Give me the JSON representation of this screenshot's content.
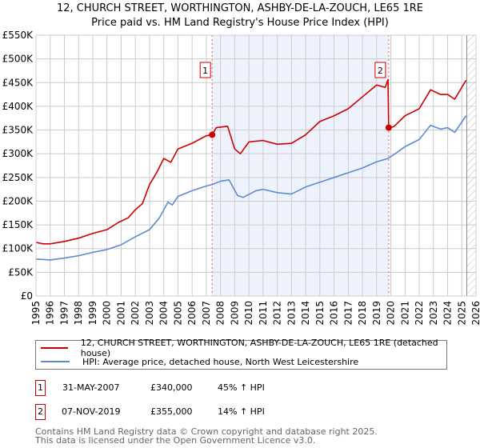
{
  "chart_data": {
    "type": "line",
    "title": "12, CHURCH STREET, WORTHINGTON, ASHBY-DE-LA-ZOUCH, LE65 1RE",
    "subtitle": "Price paid vs. HM Land Registry's House Price Index (HPI)",
    "xlabel": "",
    "ylabel": "",
    "xlim": [
      1995,
      2026
    ],
    "ylim": [
      0,
      550000
    ],
    "x_ticks": [
      "1995",
      "1996",
      "1997",
      "1998",
      "1999",
      "2000",
      "2001",
      "2002",
      "2003",
      "2004",
      "2005",
      "2006",
      "2007",
      "2008",
      "2009",
      "2010",
      "2011",
      "2012",
      "2013",
      "2014",
      "2015",
      "2016",
      "2017",
      "2018",
      "2019",
      "2020",
      "2021",
      "2022",
      "2023",
      "2024",
      "2025",
      "2026"
    ],
    "y_ticks": [
      {
        "value": 0,
        "label": "£0"
      },
      {
        "value": 50000,
        "label": "£50K"
      },
      {
        "value": 100000,
        "label": "£100K"
      },
      {
        "value": 150000,
        "label": "£150K"
      },
      {
        "value": 200000,
        "label": "£200K"
      },
      {
        "value": 250000,
        "label": "£250K"
      },
      {
        "value": 300000,
        "label": "£300K"
      },
      {
        "value": 350000,
        "label": "£350K"
      },
      {
        "value": 400000,
        "label": "£400K"
      },
      {
        "value": 450000,
        "label": "£450K"
      },
      {
        "value": 500000,
        "label": "£500K"
      },
      {
        "value": 550000,
        "label": "£550K"
      }
    ],
    "grid": true,
    "shaded_range": [
      2007.41,
      2019.85
    ],
    "forecast_from": 2025.35,
    "series": [
      {
        "name": "12, CHURCH STREET, WORTHINGTON, ASHBY-DE-LA-ZOUCH, LE65 1RE (detached house)",
        "color": "#cc0000",
        "x": [
          1995,
          1995.5,
          1996,
          1997,
          1998,
          1999,
          2000,
          2000.8,
          2001.5,
          2002,
          2002.5,
          2003,
          2003.5,
          2004,
          2004.5,
          2005,
          2006,
          2007,
          2007.41,
          2007.7,
          2008.5,
          2009,
          2009.4,
          2010,
          2011,
          2012,
          2013,
          2014,
          2015,
          2016,
          2017,
          2018,
          2019,
          2019.6,
          2019.8,
          2019.85,
          2020.2,
          2021,
          2022,
          2022.8,
          2023.5,
          2024,
          2024.5,
          2025.3
        ],
        "y": [
          113000,
          110000,
          110000,
          115000,
          122000,
          132000,
          140000,
          155000,
          165000,
          182000,
          195000,
          235000,
          260000,
          290000,
          282000,
          310000,
          322000,
          338000,
          340000,
          355000,
          358000,
          310000,
          300000,
          325000,
          328000,
          320000,
          322000,
          340000,
          368000,
          380000,
          395000,
          420000,
          445000,
          440000,
          456000,
          355000,
          357000,
          380000,
          395000,
          435000,
          425000,
          425000,
          415000,
          455000
        ]
      },
      {
        "name": "HPI: Average price, detached house, North West Leicestershire",
        "color": "#5b8bd0",
        "x": [
          1995,
          1996,
          1997,
          1998,
          1999,
          2000,
          2001,
          2002,
          2003,
          2003.7,
          2004.3,
          2004.6,
          2005,
          2006,
          2007,
          2007.4,
          2008,
          2008.6,
          2009.2,
          2009.6,
          2010.5,
          2011,
          2012,
          2013,
          2014,
          2015,
          2016,
          2017,
          2018,
          2019,
          2019.8,
          2020.3,
          2021,
          2022,
          2022.8,
          2023.5,
          2024,
          2024.5,
          2025.3
        ],
        "y": [
          78000,
          76000,
          80000,
          85000,
          92000,
          98000,
          108000,
          125000,
          140000,
          165000,
          198000,
          192000,
          210000,
          222000,
          232000,
          235000,
          242000,
          245000,
          212000,
          208000,
          222000,
          225000,
          218000,
          215000,
          230000,
          240000,
          250000,
          260000,
          270000,
          283000,
          290000,
          300000,
          315000,
          330000,
          360000,
          352000,
          355000,
          345000,
          380000
        ]
      }
    ],
    "annotations": [
      {
        "label": "1",
        "x": 2007.41,
        "y": 340000
      },
      {
        "label": "2",
        "x": 2019.85,
        "y": 355000
      }
    ],
    "legend_placement": "bottom"
  },
  "legend": {
    "property": "12, CHURCH STREET, WORTHINGTON, ASHBY-DE-LA-ZOUCH, LE65 1RE (detached house)",
    "hpi": "HPI: Average price, detached house, North West Leicestershire"
  },
  "transactions": [
    {
      "num": "1",
      "date": "31-MAY-2007",
      "price": "£340,000",
      "hpi": "45% ↑ HPI"
    },
    {
      "num": "2",
      "date": "07-NOV-2019",
      "price": "£355,000",
      "hpi": "14% ↑ HPI"
    }
  ],
  "footer": {
    "line1": "Contains HM Land Registry data © Crown copyright and database right 2025.",
    "line2": "This data is licensed under the Open Government Licence v3.0."
  }
}
